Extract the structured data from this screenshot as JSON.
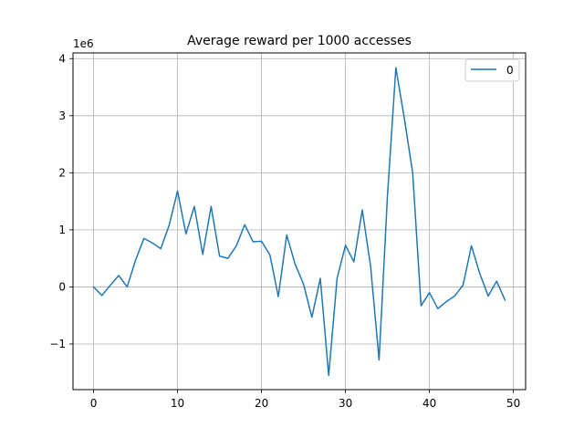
{
  "chart_data": {
    "type": "line",
    "title": "Average reward per 1000 accesses",
    "xlabel": "",
    "ylabel": "",
    "y_scale_label": "1e6",
    "xlim": [
      -2.45,
      51.45
    ],
    "ylim": [
      -1.8,
      4.1
    ],
    "x_ticks": [
      0,
      10,
      20,
      30,
      40,
      50
    ],
    "y_ticks": [
      -1,
      0,
      1,
      2,
      3,
      4
    ],
    "y_tick_labels": [
      "−1",
      "0",
      "1",
      "2",
      "3",
      "4"
    ],
    "grid": true,
    "legend_position": "top-right",
    "series": [
      {
        "name": "0",
        "color": "#1f77b4",
        "x": [
          0,
          1,
          2,
          3,
          4,
          5,
          6,
          7,
          8,
          9,
          10,
          11,
          12,
          13,
          14,
          15,
          16,
          17,
          18,
          19,
          20,
          21,
          22,
          23,
          24,
          25,
          26,
          27,
          28,
          29,
          30,
          31,
          32,
          33,
          34,
          35,
          36,
          37,
          38,
          39,
          40,
          41,
          42,
          43,
          44,
          45,
          46,
          47,
          48,
          49
        ],
        "y": [
          0.0,
          -0.15,
          0.03,
          0.2,
          0.0,
          0.47,
          0.85,
          0.77,
          0.67,
          1.08,
          1.68,
          0.93,
          1.41,
          0.57,
          1.41,
          0.54,
          0.5,
          0.72,
          1.09,
          0.79,
          0.8,
          0.56,
          -0.17,
          0.91,
          0.4,
          0.05,
          -0.53,
          0.15,
          -1.55,
          0.15,
          0.73,
          0.44,
          1.35,
          0.35,
          -1.28,
          1.6,
          3.84,
          2.96,
          2.0,
          -0.33,
          -0.1,
          -0.38,
          -0.26,
          -0.16,
          0.03,
          0.72,
          0.23,
          -0.16,
          0.1,
          -0.23
        ]
      }
    ]
  }
}
